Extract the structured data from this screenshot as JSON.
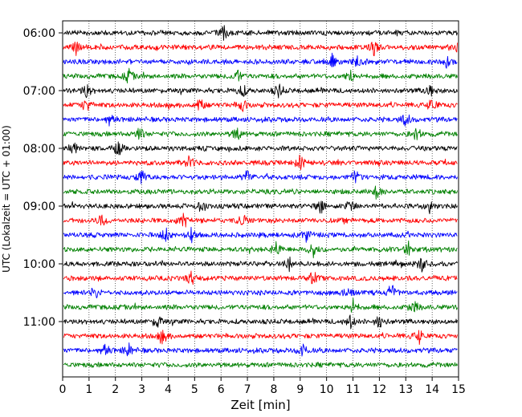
{
  "chart_data": {
    "type": "line",
    "title": "",
    "xlabel": "Zeit  [min]",
    "ylabel": "UTC (Lokalzeit = UTC + 01:00)",
    "xlim": [
      0,
      15
    ],
    "x_ticks": [
      "0",
      "1",
      "2",
      "3",
      "4",
      "5",
      "6",
      "7",
      "8",
      "9",
      "10",
      "11",
      "12",
      "13",
      "14",
      "15"
    ],
    "y_ticks": [
      {
        "label": "06:00",
        "row": 0
      },
      {
        "label": "07:00",
        "row": 4
      },
      {
        "label": "08:00",
        "row": 8
      },
      {
        "label": "09:00",
        "row": 12
      },
      {
        "label": "10:00",
        "row": 16
      },
      {
        "label": "11:00",
        "row": 20
      }
    ],
    "grid": {
      "x": "dotted",
      "y": "none"
    },
    "trace_minutes": 15,
    "colors_cycle": [
      "#000000",
      "#ff0000",
      "#0000ff",
      "#008000"
    ],
    "rows": [
      {
        "start": "06:00",
        "color": "#000000",
        "events": [
          6.1
        ]
      },
      {
        "start": "06:15",
        "color": "#ff0000",
        "events": [
          0.5,
          11.8,
          15.0
        ]
      },
      {
        "start": "06:30",
        "color": "#0000ff",
        "events": [
          10.2,
          11.2,
          14.6
        ]
      },
      {
        "start": "06:45",
        "color": "#008000",
        "events": [
          2.5,
          6.6,
          10.9
        ]
      },
      {
        "start": "07:00",
        "color": "#000000",
        "events": [
          0.9,
          6.8,
          8.2,
          13.9
        ]
      },
      {
        "start": "07:15",
        "color": "#ff0000",
        "events": [
          0.9,
          5.2,
          6.8,
          14.0
        ]
      },
      {
        "start": "07:30",
        "color": "#0000ff",
        "events": [
          1.8,
          13.0
        ]
      },
      {
        "start": "07:45",
        "color": "#008000",
        "events": [
          2.9,
          6.6,
          13.4
        ]
      },
      {
        "start": "08:00",
        "color": "#000000",
        "events": [
          0.4,
          2.1
        ]
      },
      {
        "start": "08:15",
        "color": "#ff0000",
        "events": [
          4.8,
          9.0
        ]
      },
      {
        "start": "08:30",
        "color": "#0000ff",
        "events": [
          3.0,
          7.0,
          11.1
        ]
      },
      {
        "start": "08:45",
        "color": "#008000",
        "events": [
          11.9
        ]
      },
      {
        "start": "09:00",
        "color": "#000000",
        "events": [
          5.3,
          9.8,
          10.9,
          13.9
        ]
      },
      {
        "start": "09:15",
        "color": "#ff0000",
        "events": [
          1.5,
          4.6,
          6.8
        ]
      },
      {
        "start": "09:30",
        "color": "#0000ff",
        "events": [
          3.9,
          4.9,
          9.2
        ]
      },
      {
        "start": "09:45",
        "color": "#008000",
        "events": [
          8.1,
          9.5,
          13.1
        ]
      },
      {
        "start": "10:00",
        "color": "#000000",
        "events": [
          8.6,
          13.6
        ]
      },
      {
        "start": "10:15",
        "color": "#ff0000",
        "events": [
          4.9,
          9.5
        ]
      },
      {
        "start": "10:30",
        "color": "#0000ff",
        "events": [
          1.2,
          10.8,
          12.5
        ]
      },
      {
        "start": "10:45",
        "color": "#008000",
        "events": [
          11.0,
          13.3
        ]
      },
      {
        "start": "11:00",
        "color": "#000000",
        "events": [
          3.6,
          10.9,
          12.0
        ]
      },
      {
        "start": "11:15",
        "color": "#ff0000",
        "events": [
          3.8,
          13.5
        ]
      },
      {
        "start": "11:30",
        "color": "#0000ff",
        "events": [
          1.6,
          2.5,
          9.1
        ]
      },
      {
        "start": "11:45",
        "color": "#008000",
        "events": []
      }
    ]
  }
}
